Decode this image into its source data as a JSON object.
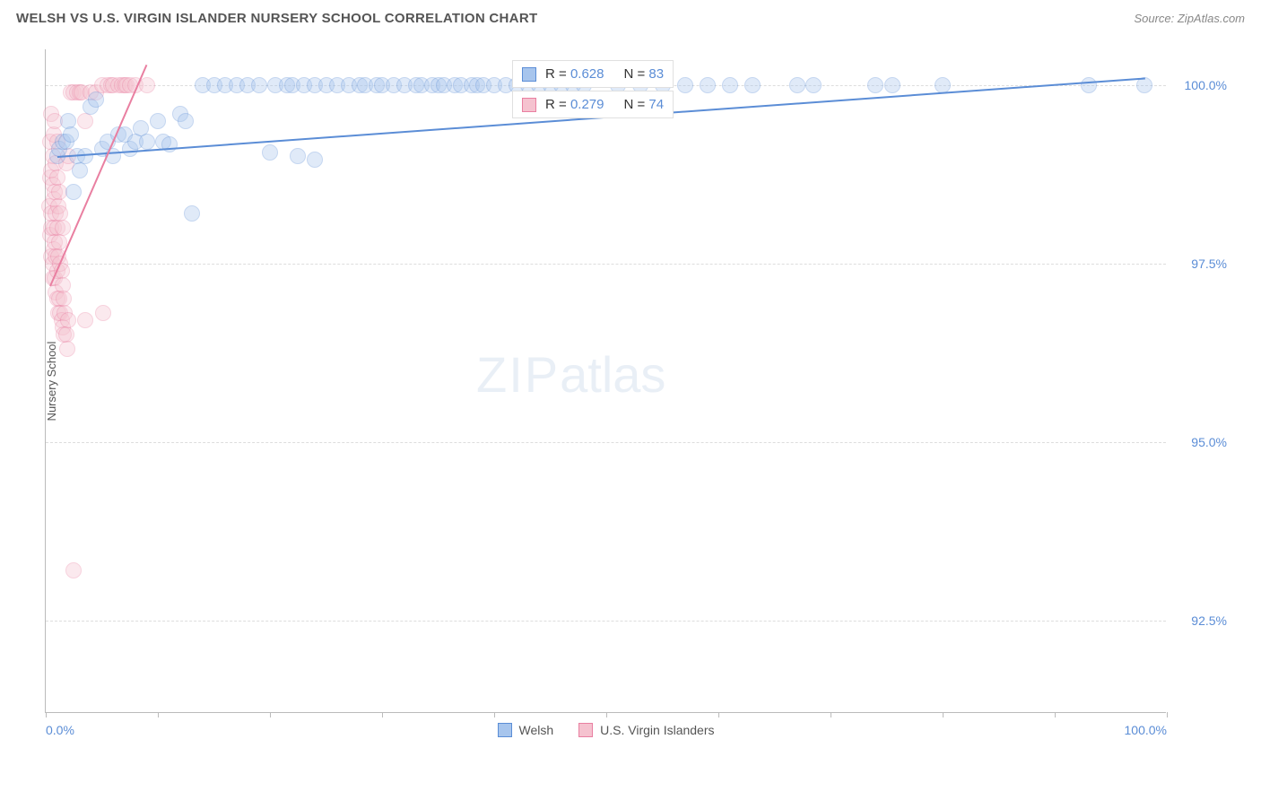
{
  "title": "WELSH VS U.S. VIRGIN ISLANDER NURSERY SCHOOL CORRELATION CHART",
  "source": "Source: ZipAtlas.com",
  "watermark_zip": "ZIP",
  "watermark_atlas": "atlas",
  "chart": {
    "type": "scatter",
    "y_axis_label": "Nursery School",
    "background_color": "#ffffff",
    "grid_color": "#dddddd",
    "tick_label_color": "#5b8dd6",
    "xlim": [
      0,
      100
    ],
    "ylim": [
      91.2,
      100.5
    ],
    "x_ticks": [
      0,
      10,
      20,
      30,
      40,
      50,
      60,
      70,
      80,
      90,
      100
    ],
    "x_tick_labels": {
      "0": "0.0%",
      "100": "100.0%"
    },
    "y_gridlines": [
      92.5,
      95.0,
      97.5,
      100.0
    ],
    "y_tick_labels": {
      "92.5": "92.5%",
      "95.0": "95.0%",
      "97.5": "97.5%",
      "100.0": "100.0%"
    },
    "marker_radius": 9,
    "marker_opacity": 0.35,
    "series": [
      {
        "name": "Welsh",
        "color_fill": "#a7c5ed",
        "color_stroke": "#5b8dd6",
        "points": [
          [
            1.0,
            99.0
          ],
          [
            1.2,
            99.1
          ],
          [
            1.5,
            99.2
          ],
          [
            1.8,
            99.2
          ],
          [
            2.0,
            99.5
          ],
          [
            2.2,
            99.3
          ],
          [
            2.5,
            98.5
          ],
          [
            2.8,
            99.0
          ],
          [
            3.0,
            98.8
          ],
          [
            3.5,
            99.0
          ],
          [
            4.0,
            99.7
          ],
          [
            4.5,
            99.8
          ],
          [
            5.0,
            99.1
          ],
          [
            5.5,
            99.2
          ],
          [
            6.0,
            99.0
          ],
          [
            6.5,
            99.3
          ],
          [
            7.0,
            99.3
          ],
          [
            7.5,
            99.1
          ],
          [
            8.0,
            99.2
          ],
          [
            8.5,
            99.4
          ],
          [
            9.0,
            99.2
          ],
          [
            10.0,
            99.5
          ],
          [
            10.5,
            99.2
          ],
          [
            11.0,
            99.17
          ],
          [
            12.0,
            99.6
          ],
          [
            12.5,
            99.5
          ],
          [
            13.0,
            98.2
          ],
          [
            14.0,
            100.0
          ],
          [
            15.0,
            100.0
          ],
          [
            16.0,
            100.0
          ],
          [
            17.0,
            100.0
          ],
          [
            18.0,
            100.0
          ],
          [
            19.0,
            100.0
          ],
          [
            20.0,
            99.05
          ],
          [
            20.5,
            100.0
          ],
          [
            21.5,
            100.0
          ],
          [
            22.0,
            100.0
          ],
          [
            22.5,
            99.0
          ],
          [
            23.0,
            100.0
          ],
          [
            24.0,
            100.0
          ],
          [
            24.0,
            98.95
          ],
          [
            25.0,
            100.0
          ],
          [
            26.0,
            100.0
          ],
          [
            27.0,
            100.0
          ],
          [
            28.0,
            100.0
          ],
          [
            28.5,
            100.0
          ],
          [
            29.5,
            100.0
          ],
          [
            30.0,
            100.0
          ],
          [
            31.0,
            100.0
          ],
          [
            32.0,
            100.0
          ],
          [
            33.0,
            100.0
          ],
          [
            33.5,
            100.0
          ],
          [
            34.5,
            100.0
          ],
          [
            35.0,
            100.0
          ],
          [
            35.5,
            100.0
          ],
          [
            36.5,
            100.0
          ],
          [
            37.0,
            100.0
          ],
          [
            38.0,
            100.0
          ],
          [
            38.5,
            100.0
          ],
          [
            39.0,
            100.0
          ],
          [
            40.0,
            100.0
          ],
          [
            41.0,
            100.0
          ],
          [
            42.0,
            100.0
          ],
          [
            43.0,
            100.0
          ],
          [
            44.0,
            100.0
          ],
          [
            45.0,
            100.0
          ],
          [
            46.0,
            100.0
          ],
          [
            47.0,
            100.0
          ],
          [
            48.0,
            100.0
          ],
          [
            51.0,
            100.0
          ],
          [
            53.0,
            100.0
          ],
          [
            55.0,
            100.0
          ],
          [
            57.0,
            100.0
          ],
          [
            59.0,
            100.0
          ],
          [
            61.0,
            100.0
          ],
          [
            63.0,
            100.0
          ],
          [
            67.0,
            100.0
          ],
          [
            68.5,
            100.0
          ],
          [
            74.0,
            100.0
          ],
          [
            75.5,
            100.0
          ],
          [
            80.0,
            100.0
          ],
          [
            93.0,
            100.0
          ],
          [
            98.0,
            100.0
          ]
        ],
        "trendline": {
          "x0": 1,
          "y0": 99.0,
          "x1": 98,
          "y1": 100.1,
          "width": 2.0
        }
      },
      {
        "name": "U.S. Virgin Islanders",
        "color_fill": "#f5c2cf",
        "color_stroke": "#e97fa1",
        "points": [
          [
            0.3,
            98.3
          ],
          [
            0.4,
            97.9
          ],
          [
            0.4,
            98.7
          ],
          [
            0.4,
            99.2
          ],
          [
            0.5,
            98.0
          ],
          [
            0.5,
            98.2
          ],
          [
            0.5,
            98.8
          ],
          [
            0.5,
            99.6
          ],
          [
            0.5,
            97.6
          ],
          [
            0.6,
            97.3
          ],
          [
            0.6,
            97.5
          ],
          [
            0.6,
            98.6
          ],
          [
            0.6,
            99.0
          ],
          [
            0.7,
            97.7
          ],
          [
            0.7,
            98.0
          ],
          [
            0.7,
            98.4
          ],
          [
            0.7,
            99.3
          ],
          [
            0.8,
            97.3
          ],
          [
            0.8,
            97.8
          ],
          [
            0.8,
            98.5
          ],
          [
            0.8,
            99.5
          ],
          [
            0.9,
            97.1
          ],
          [
            0.9,
            97.6
          ],
          [
            0.9,
            98.2
          ],
          [
            0.9,
            98.9
          ],
          [
            1.0,
            97.0
          ],
          [
            1.0,
            97.4
          ],
          [
            1.0,
            98.0
          ],
          [
            1.0,
            98.7
          ],
          [
            1.0,
            99.2
          ],
          [
            1.1,
            96.8
          ],
          [
            1.1,
            97.6
          ],
          [
            1.1,
            98.3
          ],
          [
            1.2,
            97.0
          ],
          [
            1.2,
            97.8
          ],
          [
            1.2,
            98.5
          ],
          [
            1.3,
            96.8
          ],
          [
            1.3,
            97.5
          ],
          [
            1.3,
            98.2
          ],
          [
            1.4,
            96.7
          ],
          [
            1.4,
            97.4
          ],
          [
            1.5,
            96.6
          ],
          [
            1.5,
            97.2
          ],
          [
            1.5,
            98.0
          ],
          [
            1.6,
            96.5
          ],
          [
            1.6,
            97.0
          ],
          [
            1.7,
            96.8
          ],
          [
            1.8,
            96.5
          ],
          [
            1.8,
            98.9
          ],
          [
            1.9,
            96.3
          ],
          [
            2.0,
            96.7
          ],
          [
            2.0,
            99.0
          ],
          [
            2.2,
            99.9
          ],
          [
            2.5,
            99.9
          ],
          [
            2.5,
            93.2
          ],
          [
            2.8,
            99.9
          ],
          [
            3.0,
            99.9
          ],
          [
            3.2,
            99.9
          ],
          [
            3.5,
            99.5
          ],
          [
            3.5,
            96.7
          ],
          [
            4.0,
            99.9
          ],
          [
            4.5,
            99.9
          ],
          [
            5.0,
            100.0
          ],
          [
            5.1,
            96.8
          ],
          [
            5.5,
            100.0
          ],
          [
            5.8,
            100.0
          ],
          [
            6.0,
            100.0
          ],
          [
            6.5,
            100.0
          ],
          [
            6.8,
            100.0
          ],
          [
            7.0,
            100.0
          ],
          [
            7.2,
            100.0
          ],
          [
            7.5,
            100.0
          ],
          [
            8.0,
            100.0
          ],
          [
            9.0,
            100.0
          ]
        ],
        "trendline": {
          "x0": 0.4,
          "y0": 97.2,
          "x1": 9.0,
          "y1": 100.3,
          "width": 2.0
        }
      }
    ],
    "stats": [
      {
        "series": "Welsh",
        "swatch_fill": "#a7c5ed",
        "swatch_stroke": "#5b8dd6",
        "R": "0.628",
        "N": "83"
      },
      {
        "series": "U.S. Virgin Islanders",
        "swatch_fill": "#f5c2cf",
        "swatch_stroke": "#e97fa1",
        "R": "0.279",
        "N": "74"
      }
    ],
    "legend": [
      {
        "label": "Welsh",
        "swatch_fill": "#a7c5ed",
        "swatch_stroke": "#5b8dd6"
      },
      {
        "label": "U.S. Virgin Islanders",
        "swatch_fill": "#f5c2cf",
        "swatch_stroke": "#e97fa1"
      }
    ]
  }
}
